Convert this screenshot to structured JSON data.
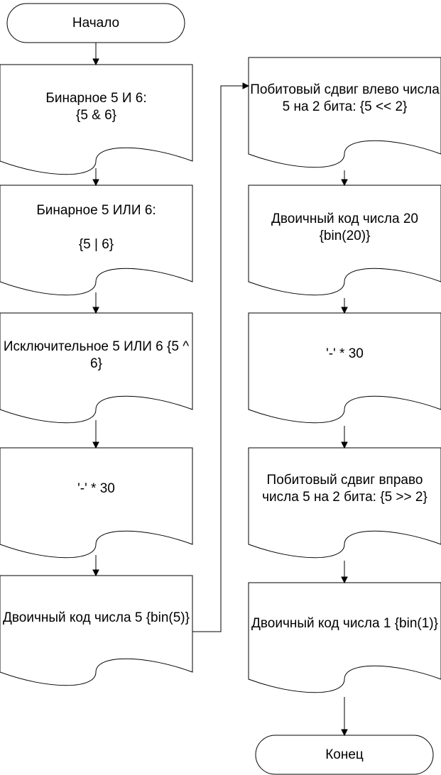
{
  "flowchart": {
    "start": "Начало",
    "end": "Конец",
    "left_column": [
      "Бинарное 5 И 6:\n{5 & 6}",
      "Бинарное 5 ИЛИ 6:\n\n{5 | 6}",
      "Исключительное 5 ИЛИ 6 {5 ^ 6}",
      "'-' * 30",
      "Двоичный код числа 5 {bin(5)}"
    ],
    "right_column": [
      "Побитовый сдвиг влево числа 5 на 2 бита: {5 << 2}",
      "Двоичный код числа 20 {bin(20)}",
      "'-' * 30",
      "Побитовый сдвиг вправо числа 5 на 2 бита: {5 >> 2}",
      "Двоичный код числа 1 {bin(1)}"
    ]
  }
}
